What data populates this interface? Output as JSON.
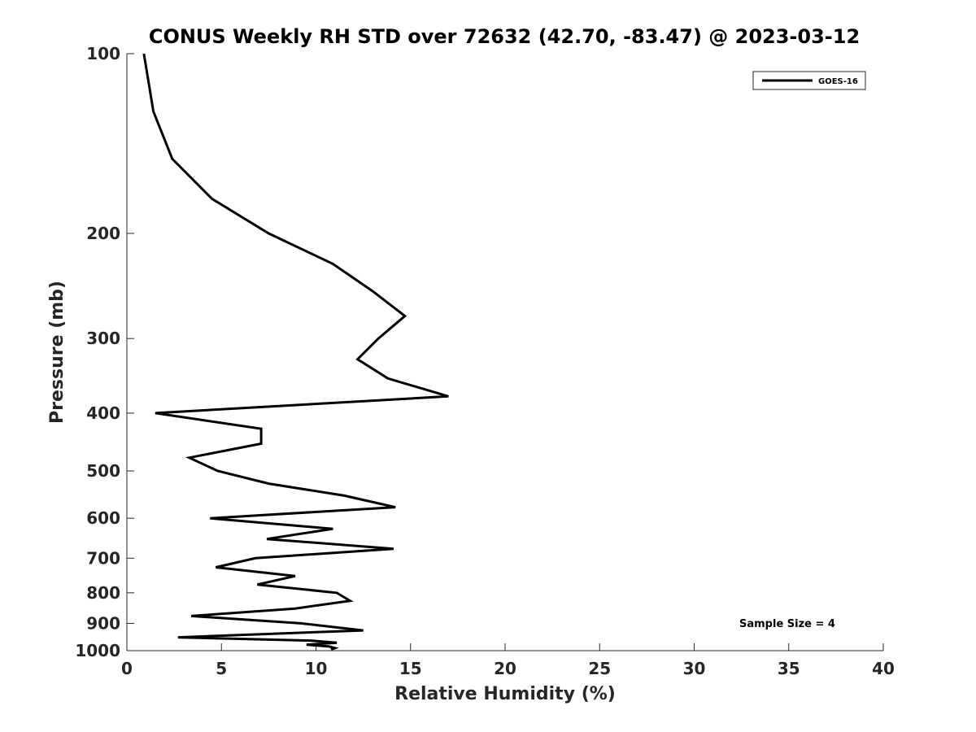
{
  "chart_data": {
    "type": "line",
    "title": "CONUS Weekly RH STD over 72632 (42.70, -83.47) @ 2023-03-12",
    "xlabel": "Relative Humidity (%)",
    "ylabel": "Pressure (mb)",
    "xlim": [
      0,
      40
    ],
    "ylim": [
      100,
      1000
    ],
    "yscale": "log",
    "y_reversed": true,
    "xticks": [
      0,
      5,
      10,
      15,
      20,
      25,
      30,
      35,
      40
    ],
    "yticks": [
      100,
      200,
      300,
      400,
      500,
      600,
      700,
      800,
      900,
      1000
    ],
    "legend": {
      "position": "top-right",
      "entries": [
        "GOES-16"
      ]
    },
    "annotation": "Sample Size = 4",
    "series": [
      {
        "name": "GOES-16",
        "color": "#000000",
        "points": [
          [
            0.9,
            100
          ],
          [
            1.4,
            125
          ],
          [
            2.4,
            150
          ],
          [
            4.5,
            175
          ],
          [
            7.5,
            200
          ],
          [
            10.9,
            225
          ],
          [
            13.0,
            250
          ],
          [
            14.7,
            275
          ],
          [
            13.3,
            300
          ],
          [
            12.2,
            325
          ],
          [
            13.8,
            350
          ],
          [
            17.0,
            375
          ],
          [
            1.5,
            400
          ],
          [
            7.1,
            425
          ],
          [
            7.1,
            450
          ],
          [
            3.3,
            475
          ],
          [
            4.8,
            500
          ],
          [
            7.5,
            525
          ],
          [
            11.5,
            550
          ],
          [
            14.2,
            575
          ],
          [
            4.4,
            600
          ],
          [
            10.9,
            625
          ],
          [
            7.4,
            650
          ],
          [
            14.1,
            675
          ],
          [
            6.8,
            700
          ],
          [
            4.7,
            725
          ],
          [
            8.9,
            750
          ],
          [
            6.9,
            775
          ],
          [
            11.1,
            800
          ],
          [
            11.8,
            825
          ],
          [
            8.9,
            850
          ],
          [
            3.4,
            875
          ],
          [
            9.2,
            900
          ],
          [
            12.5,
            925
          ],
          [
            2.7,
            950
          ],
          [
            9.8,
            962
          ],
          [
            11.1,
            970
          ],
          [
            9.5,
            977
          ],
          [
            10.7,
            984
          ],
          [
            11.0,
            990
          ],
          [
            10.8,
            995
          ]
        ]
      }
    ]
  }
}
